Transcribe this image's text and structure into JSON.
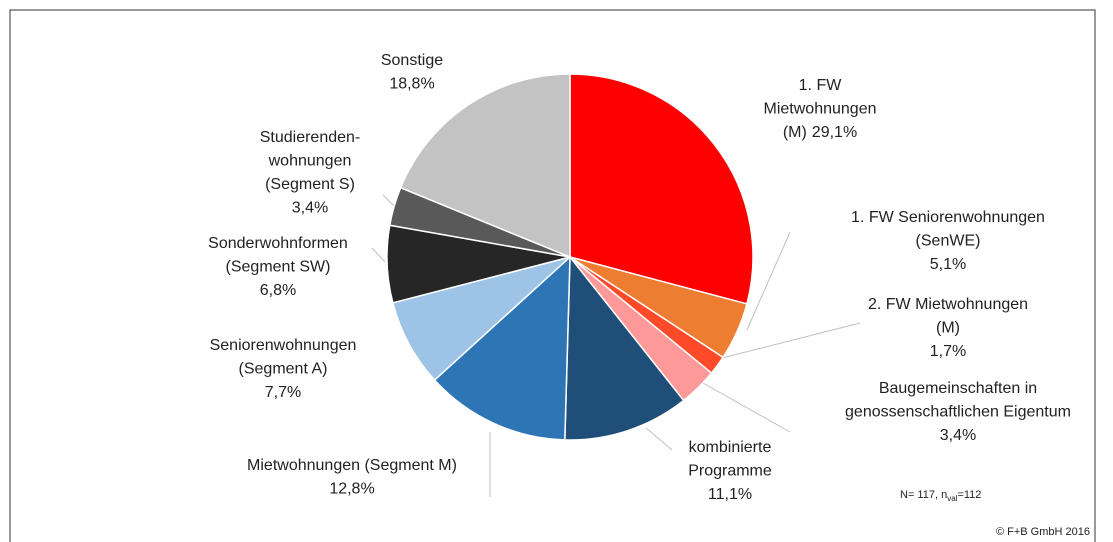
{
  "chart_data": {
    "type": "pie",
    "categories": [
      [
        "1. FW",
        "Mietwohnungen",
        "(M)"
      ],
      [
        "1. FW Seniorenwohnungen",
        "(SenWE)"
      ],
      [
        "2. FW Mietwohnungen",
        "(M)"
      ],
      [
        "Baugemeinschaften in",
        "genossenschaftlichen Eigentum"
      ],
      [
        "kombinierte",
        "Programme"
      ],
      [
        "Mietwohnungen (Segment M)"
      ],
      [
        "Seniorenwohnungen",
        "(Segment A)"
      ],
      [
        "Sonderwohnformen",
        "(Segment SW)"
      ],
      [
        "Studierenden-",
        "wohnungen",
        "(Segment S)"
      ],
      [
        "Sonstige"
      ]
    ],
    "values": [
      29.1,
      5.1,
      1.7,
      3.4,
      11.1,
      12.8,
      7.7,
      6.8,
      3.4,
      18.8
    ],
    "value_labels": [
      "29,1%",
      "5,1%",
      "1,7%",
      "3,4%",
      "11,1%",
      "12,8%",
      "7,7%",
      "6,8%",
      "3,4%",
      "18,8%"
    ],
    "colors": [
      "#ff0000",
      "#ed7d31",
      "#ff4a2a",
      "#ff9999",
      "#1f4e79",
      "#2e75b6",
      "#9dc3e6",
      "#262626",
      "#595959",
      "#c3c3c3"
    ],
    "note": [
      "N= 117, n",
      "val",
      "=112"
    ],
    "source": "© F+B GmbH 2016"
  }
}
